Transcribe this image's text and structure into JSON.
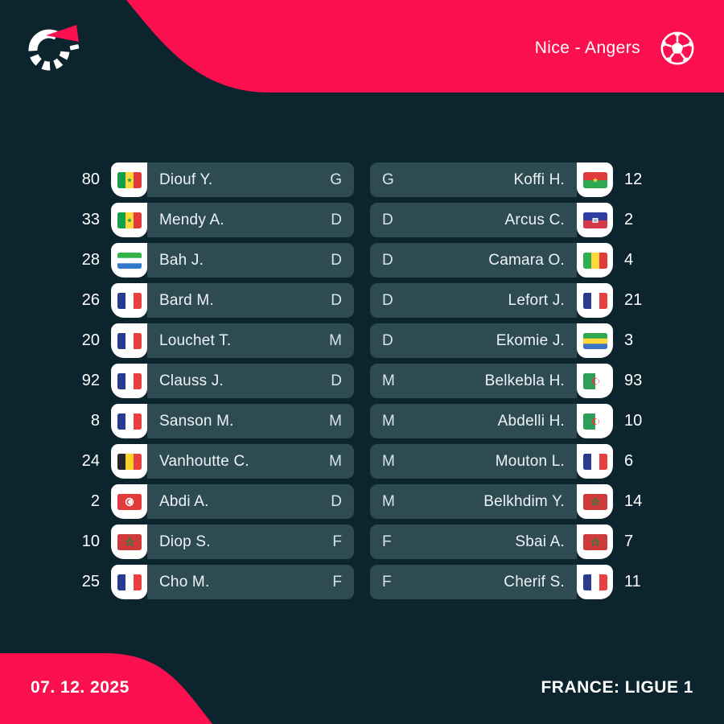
{
  "header": {
    "title": "Nice - Angers"
  },
  "footer": {
    "date": "07. 12. 2025",
    "league": "FRANCE: LIGUE 1"
  },
  "colors": {
    "background": "#0C242D",
    "accent_pink": "#FA0F4F",
    "pill_teal": "#2E4B54",
    "flag_tab_white": "#FFFFFF",
    "text_white": "#FFFFFF"
  },
  "icons": {
    "brand": "flashscore-logo",
    "sport": "football"
  },
  "lineups": {
    "home": {
      "team": "Nice",
      "players": [
        {
          "number": "80",
          "nationality": "senegal",
          "name": "Diouf Y.",
          "position": "G"
        },
        {
          "number": "33",
          "nationality": "senegal",
          "name": "Mendy A.",
          "position": "D"
        },
        {
          "number": "28",
          "nationality": "sierra-leone",
          "name": "Bah J.",
          "position": "D"
        },
        {
          "number": "26",
          "nationality": "france",
          "name": "Bard M.",
          "position": "D"
        },
        {
          "number": "20",
          "nationality": "france",
          "name": "Louchet T.",
          "position": "M"
        },
        {
          "number": "92",
          "nationality": "france",
          "name": "Clauss J.",
          "position": "D"
        },
        {
          "number": "8",
          "nationality": "france",
          "name": "Sanson M.",
          "position": "M"
        },
        {
          "number": "24",
          "nationality": "belgium",
          "name": "Vanhoutte C.",
          "position": "M"
        },
        {
          "number": "2",
          "nationality": "tunisia",
          "name": "Abdi A.",
          "position": "D"
        },
        {
          "number": "10",
          "nationality": "morocco",
          "name": "Diop S.",
          "position": "F"
        },
        {
          "number": "25",
          "nationality": "france",
          "name": "Cho M.",
          "position": "F"
        }
      ]
    },
    "away": {
      "team": "Angers",
      "players": [
        {
          "number": "12",
          "nationality": "burkina-faso",
          "name": "Koffi H.",
          "position": "G"
        },
        {
          "number": "2",
          "nationality": "haiti",
          "name": "Arcus C.",
          "position": "D"
        },
        {
          "number": "4",
          "nationality": "mali",
          "name": "Camara O.",
          "position": "D"
        },
        {
          "number": "21",
          "nationality": "france",
          "name": "Lefort J.",
          "position": "D"
        },
        {
          "number": "3",
          "nationality": "gabon",
          "name": "Ekomie J.",
          "position": "D"
        },
        {
          "number": "93",
          "nationality": "algeria",
          "name": "Belkebla H.",
          "position": "M"
        },
        {
          "number": "10",
          "nationality": "algeria",
          "name": "Abdelli H.",
          "position": "M"
        },
        {
          "number": "6",
          "nationality": "france",
          "name": "Mouton L.",
          "position": "M"
        },
        {
          "number": "14",
          "nationality": "morocco",
          "name": "Belkhdim Y.",
          "position": "M"
        },
        {
          "number": "7",
          "nationality": "morocco",
          "name": "Sbai A.",
          "position": "F"
        },
        {
          "number": "11",
          "nationality": "france",
          "name": "Cherif S.",
          "position": "F"
        }
      ]
    }
  }
}
